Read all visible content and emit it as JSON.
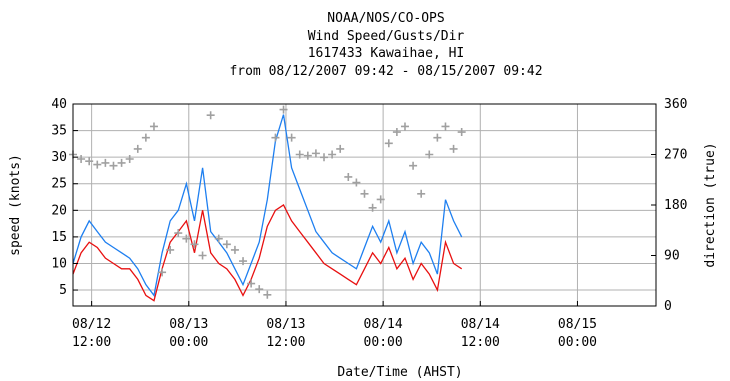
{
  "chart_data": {
    "type": "line",
    "title_lines": [
      "NOAA/NOS/CO-OPS",
      "Wind Speed/Gusts/Dir",
      "1617433 Kawaihae, HI",
      "from 08/12/2007 09:42 - 08/15/2007 09:42"
    ],
    "xlabel": "Date/Time (AHST)",
    "ylabel_left": "speed (knots)",
    "ylabel_right": "direction (true)",
    "xlim_hours": [
      0,
      72
    ],
    "ylim_left": [
      2,
      40
    ],
    "ylim_right": [
      0,
      360
    ],
    "y_ticks_left": [
      5,
      10,
      15,
      20,
      25,
      30,
      35,
      40
    ],
    "y_ticks_right": [
      0,
      90,
      180,
      270,
      360
    ],
    "x_ticks": [
      {
        "hour": 2.3,
        "line1": "08/12",
        "line2": "12:00"
      },
      {
        "hour": 14.3,
        "line1": "08/13",
        "line2": "00:00"
      },
      {
        "hour": 26.3,
        "line1": "08/13",
        "line2": "12:00"
      },
      {
        "hour": 38.3,
        "line1": "08/14",
        "line2": "00:00"
      },
      {
        "hour": 50.3,
        "line1": "08/14",
        "line2": "12:00"
      },
      {
        "hour": 62.3,
        "line1": "08/15",
        "line2": "00:00"
      }
    ],
    "grid": true,
    "colors": {
      "gusts": "#1e7ff0",
      "speed": "#e81010",
      "direction": "#a0a0a0",
      "grid": "#b0b0b0",
      "axis": "#000000"
    },
    "series": [
      {
        "key": "gusts",
        "x": [
          0,
          1,
          2,
          3,
          4,
          5,
          6,
          7,
          8,
          9,
          10,
          11,
          12,
          13,
          14,
          15,
          16,
          17,
          18,
          19,
          20,
          21,
          22,
          23,
          24,
          25,
          26,
          27,
          28,
          29,
          30,
          31,
          32,
          33,
          34,
          35,
          36,
          37,
          38,
          39,
          40,
          41,
          42,
          43,
          44,
          45,
          46,
          47,
          48
        ],
        "values": [
          10,
          15,
          18,
          16,
          14,
          13,
          12,
          11,
          9,
          6,
          4,
          12,
          18,
          20,
          25,
          18,
          28,
          16,
          14,
          12,
          9,
          6,
          10,
          14,
          22,
          33,
          38,
          28,
          24,
          20,
          16,
          14,
          12,
          11,
          10,
          9,
          13,
          17,
          14,
          18,
          12,
          16,
          10,
          14,
          12,
          8,
          22,
          18,
          15
        ]
      },
      {
        "key": "speed",
        "x": [
          0,
          1,
          2,
          3,
          4,
          5,
          6,
          7,
          8,
          9,
          10,
          11,
          12,
          13,
          14,
          15,
          16,
          17,
          18,
          19,
          20,
          21,
          22,
          23,
          24,
          25,
          26,
          27,
          28,
          29,
          30,
          31,
          32,
          33,
          34,
          35,
          36,
          37,
          38,
          39,
          40,
          41,
          42,
          43,
          44,
          45,
          46,
          47,
          48
        ],
        "values": [
          8,
          12,
          14,
          13,
          11,
          10,
          9,
          9,
          7,
          4,
          3,
          9,
          14,
          16,
          18,
          12,
          20,
          12,
          10,
          9,
          7,
          4,
          7,
          11,
          17,
          20,
          21,
          18,
          16,
          14,
          12,
          10,
          9,
          8,
          7,
          6,
          9,
          12,
          10,
          13,
          9,
          11,
          7,
          10,
          8,
          5,
          14,
          10,
          9
        ]
      },
      {
        "key": "direction",
        "x": [
          0,
          1,
          2,
          3,
          4,
          5,
          6,
          7,
          8,
          9,
          10,
          11,
          12,
          13,
          14,
          15,
          16,
          17,
          18,
          19,
          20,
          21,
          22,
          23,
          24,
          25,
          26,
          27,
          28,
          29,
          30,
          31,
          32,
          33,
          34,
          35,
          36,
          37,
          38,
          39,
          40,
          41,
          42,
          43,
          44,
          45,
          46,
          47,
          48
        ],
        "values": [
          270,
          262,
          258,
          252,
          255,
          250,
          255,
          262,
          280,
          300,
          320,
          60,
          100,
          130,
          120,
          110,
          90,
          340,
          120,
          110,
          100,
          80,
          40,
          30,
          20,
          300,
          350,
          300,
          270,
          268,
          272,
          265,
          270,
          280,
          230,
          220,
          200,
          175,
          190,
          290,
          310,
          320,
          250,
          200,
          270,
          300,
          320,
          280,
          310
        ]
      }
    ]
  }
}
